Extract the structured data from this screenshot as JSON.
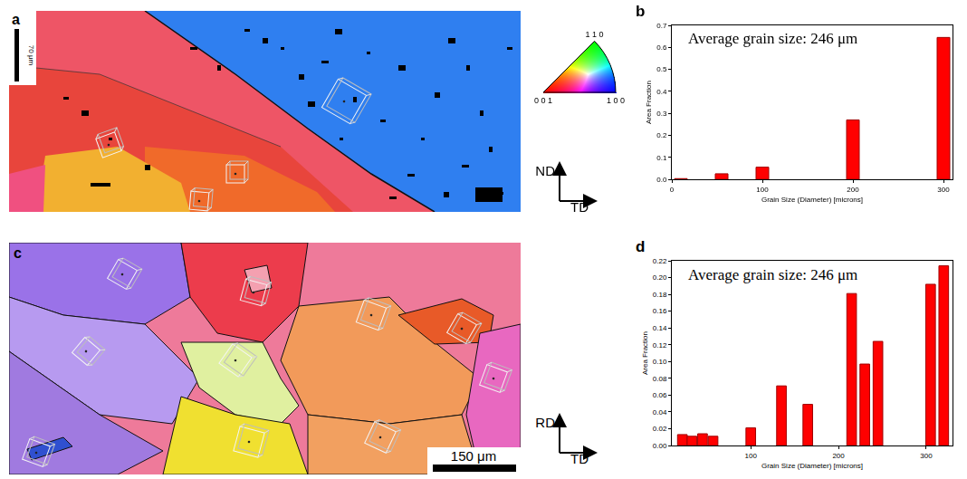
{
  "figure": {
    "maps": [
      {
        "panel": "a",
        "scale_bar": "70 μm",
        "vertical_axis": "ND",
        "horizontal_axis": "TD"
      },
      {
        "panel": "c",
        "scale_bar": "150 μm",
        "vertical_axis": "RD",
        "horizontal_axis": "TD"
      }
    ],
    "ipf_legend": {
      "top": "1 1 0",
      "left": "0 0 1",
      "right": "1 0 0"
    }
  },
  "chart_data": [
    {
      "panel": "b",
      "type": "bar",
      "annotation": "Average grain size: 246 μm",
      "x_label": "Grain Size (Diameter) [microns]",
      "y_label": "Area Fraction",
      "x": [
        10,
        55,
        100,
        200,
        300
      ],
      "values": [
        0.003,
        0.025,
        0.055,
        0.27,
        0.645
      ],
      "color": "#ff0000",
      "grid": false,
      "xlim": [
        0,
        310
      ],
      "xticks": [
        0,
        100,
        200,
        300
      ],
      "ylim": [
        0,
        0.7
      ],
      "yticks": [
        {
          "value": 0,
          "label": "0.0"
        },
        0.1,
        0.2,
        0.3,
        0.4,
        0.5,
        0.6,
        0.7
      ]
    },
    {
      "panel": "d",
      "type": "bar",
      "annotation": "Average grain size: 246 μm",
      "x_label": "Grain Size (Diameter) [microns]",
      "y_label": "Area Fraction",
      "x": [
        22,
        33,
        45,
        57,
        100,
        135,
        165,
        215,
        230,
        245,
        305,
        320
      ],
      "values": [
        0.013,
        0.011,
        0.014,
        0.011,
        0.021,
        0.071,
        0.049,
        0.181,
        0.097,
        0.124,
        0.192,
        0.214
      ],
      "color": "#ff0000",
      "grid": false,
      "xlim": [
        10,
        330
      ],
      "xticks": [
        100,
        200,
        300
      ],
      "ylim": [
        0,
        0.22
      ],
      "yticks": [
        {
          "value": 0,
          "label": "0.00"
        },
        0.02,
        0.04,
        0.06,
        0.08,
        {
          "value": 0.1,
          "label": "0.10"
        },
        0.12,
        0.14,
        0.16,
        0.18,
        {
          "value": 0.2,
          "label": "0.20"
        },
        0.22
      ]
    }
  ]
}
